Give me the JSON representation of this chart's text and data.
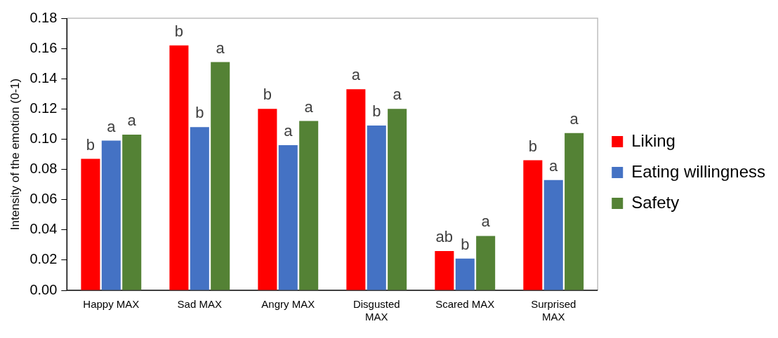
{
  "chart_data": {
    "type": "bar",
    "ylabel": "Intensity of the emotion (0-1)",
    "categories": [
      "Happy MAX",
      "Sad MAX",
      "Angry MAX",
      "Disgusted MAX",
      "Scared MAX",
      "Surprised MAX"
    ],
    "series": [
      {
        "name": "Liking",
        "color": "#ff0000",
        "values": [
          0.087,
          0.162,
          0.12,
          0.133,
          0.026,
          0.086
        ],
        "value_labels": [
          "b",
          "b",
          "b",
          "a",
          "ab",
          "b"
        ]
      },
      {
        "name": "Eating willingness",
        "color": "#4472c4",
        "values": [
          0.099,
          0.108,
          0.096,
          0.109,
          0.021,
          0.073
        ],
        "value_labels": [
          "a",
          "b",
          "a",
          "b",
          "b",
          "a"
        ]
      },
      {
        "name": "Safety",
        "color": "#548235",
        "values": [
          0.103,
          0.151,
          0.112,
          0.12,
          0.036,
          0.104
        ],
        "value_labels": [
          "a",
          "a",
          "a",
          "a",
          "a",
          "a"
        ]
      }
    ],
    "ylim": [
      0,
      0.18
    ],
    "yticks": [
      {
        "value": 0,
        "label": "0.00"
      },
      {
        "value": 0.02,
        "label": "0.02"
      },
      {
        "value": 0.04,
        "label": "0.04"
      },
      {
        "value": 0.06,
        "label": "0.06"
      },
      {
        "value": 0.08,
        "label": "0.08"
      },
      {
        "value": 0.1,
        "label": "0.10"
      },
      {
        "value": 0.12,
        "label": "0.12"
      },
      {
        "value": 0.14,
        "label": "0.14"
      },
      {
        "value": 0.16,
        "label": "0.16"
      },
      {
        "value": 0.18,
        "label": "0.18"
      }
    ],
    "grid": false,
    "legend": "right"
  }
}
